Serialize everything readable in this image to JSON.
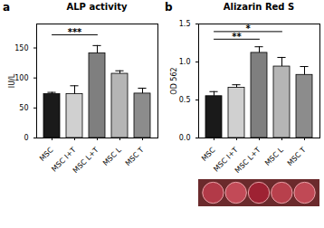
{
  "chart_data": [
    {
      "type": "bar",
      "panel": "a",
      "title": "ALP activity",
      "y_label": "IU/L",
      "categories": [
        "MSC",
        "MSC I+T",
        "MSC L+T",
        "MSC L",
        "MSC T"
      ],
      "values": [
        73,
        73,
        141,
        107,
        74
      ],
      "errors": [
        3,
        14,
        13,
        5,
        9
      ],
      "colors": [
        "#1a1a1a",
        "#d0d0d0",
        "#7f7f7f",
        "#b5b5b5",
        "#8c8c8c"
      ],
      "ylim": [
        0,
        190
      ],
      "yticks": [
        0,
        50,
        100,
        150
      ],
      "annotations": [
        {
          "from": "MSC",
          "to": "MSC L+T",
          "y": 172,
          "label": "***"
        }
      ]
    },
    {
      "type": "bar",
      "panel": "b",
      "title": "Alizarin Red S",
      "y_label": "OD 562",
      "categories": [
        "MSC",
        "MSC I+T",
        "MSC L+T",
        "MSC L",
        "MSC T"
      ],
      "values": [
        0.55,
        0.66,
        1.12,
        0.94,
        0.83
      ],
      "errors": [
        0.06,
        0.04,
        0.08,
        0.12,
        0.11
      ],
      "colors": [
        "#1a1a1a",
        "#d0d0d0",
        "#7f7f7f",
        "#b5b5b5",
        "#8c8c8c"
      ],
      "ylim": [
        0,
        1.5
      ],
      "yticks": [
        {
          "value": 0,
          "label": "0.0"
        },
        {
          "value": 0.5,
          "label": "0.5"
        },
        {
          "value": 1,
          "label": "1.0"
        },
        {
          "value": 1.5,
          "label": "1.5"
        }
      ],
      "annotations": [
        {
          "from": "MSC",
          "to": "MSC L+T",
          "y": 1.3,
          "label": "**"
        },
        {
          "from": "MSC",
          "to": "MSC L",
          "y": 1.4,
          "label": "*"
        }
      ]
    }
  ]
}
